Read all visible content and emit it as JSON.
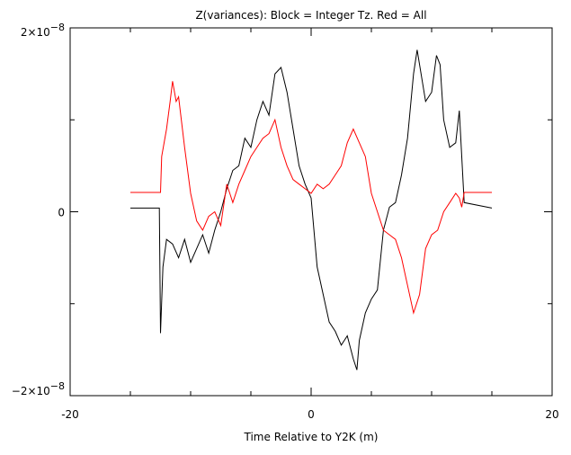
{
  "chart_data": {
    "type": "line",
    "title": "Z(variances): Block = Integer Tz. Red = All",
    "xlabel": "Time Relative to Y2K (m)",
    "ylabel": "",
    "xlim": [
      -20,
      20
    ],
    "ylim": [
      -2e-08,
      2e-08
    ],
    "x_ticks": [
      {
        "v": -20,
        "label": "-20"
      },
      {
        "v": 0,
        "label": "0"
      },
      {
        "v": 20,
        "label": "20"
      }
    ],
    "y_ticks": [
      {
        "v": 2e-08,
        "base": "2×10",
        "exp": "−8"
      },
      {
        "v": 0,
        "base": "0",
        "exp": ""
      },
      {
        "v": -2e-08,
        "base": "−2×10",
        "exp": "−8"
      }
    ],
    "grid": false,
    "y_units_scale": 1e-08,
    "series": [
      {
        "color": "#000000",
        "x": [
          -15,
          -12.6,
          -12.5,
          -12.3,
          -12,
          -11.5,
          -11,
          -10.5,
          -10,
          -9.5,
          -9,
          -8.5,
          -8,
          -7.5,
          -7,
          -6.5,
          -6,
          -5.5,
          -5,
          -4.5,
          -4,
          -3.5,
          -3,
          -2.5,
          -2,
          -1.5,
          -1,
          -0.5,
          0,
          0.5,
          1,
          1.5,
          2,
          2.5,
          3,
          3.5,
          3.8,
          4,
          4.5,
          5,
          5.5,
          6,
          6.5,
          7,
          7.5,
          8,
          8.5,
          8.8,
          9,
          9.5,
          10,
          10.4,
          10.7,
          11,
          11.5,
          12,
          12.3,
          12.5,
          12.7,
          15
        ],
        "y": [
          0.04,
          0.04,
          -1.32,
          -0.6,
          -0.3,
          -0.35,
          -0.5,
          -0.3,
          -0.55,
          -0.4,
          -0.25,
          -0.45,
          -0.2,
          0.0,
          0.25,
          0.45,
          0.5,
          0.8,
          0.7,
          1.0,
          1.2,
          1.05,
          1.5,
          1.57,
          1.3,
          0.9,
          0.5,
          0.3,
          0.15,
          -0.6,
          -0.9,
          -1.2,
          -1.3,
          -1.45,
          -1.35,
          -1.6,
          -1.72,
          -1.4,
          -1.1,
          -0.95,
          -0.85,
          -0.2,
          0.05,
          0.1,
          0.4,
          0.8,
          1.5,
          1.76,
          1.6,
          1.2,
          1.3,
          1.7,
          1.6,
          1.0,
          0.7,
          0.75,
          1.1,
          0.6,
          0.1,
          0.04
        ]
      },
      {
        "color": "#ff0000",
        "x": [
          -15,
          -12.5,
          -12.4,
          -12,
          -11.7,
          -11.5,
          -11.2,
          -11,
          -10.5,
          -10,
          -9.5,
          -9,
          -8.5,
          -8,
          -7.5,
          -7,
          -6.5,
          -6,
          -5.5,
          -5,
          -4.5,
          -4,
          -3.5,
          -3,
          -2.5,
          -2,
          -1.5,
          -1,
          -0.5,
          0,
          0.5,
          1,
          1.5,
          2,
          2.5,
          3,
          3.5,
          4,
          4.5,
          5,
          5.5,
          6,
          6.5,
          7,
          7.5,
          8,
          8.5,
          9,
          9.5,
          10,
          10.5,
          11,
          11.5,
          12,
          12.3,
          12.5,
          12.7,
          15
        ],
        "y": [
          0.21,
          0.21,
          0.6,
          0.9,
          1.2,
          1.42,
          1.2,
          1.25,
          0.7,
          0.2,
          -0.1,
          -0.2,
          -0.05,
          0.0,
          -0.15,
          0.3,
          0.1,
          0.3,
          0.45,
          0.6,
          0.7,
          0.8,
          0.85,
          1.0,
          0.7,
          0.5,
          0.35,
          0.3,
          0.25,
          0.2,
          0.3,
          0.25,
          0.3,
          0.4,
          0.5,
          0.75,
          0.9,
          0.75,
          0.6,
          0.2,
          0.0,
          -0.2,
          -0.25,
          -0.3,
          -0.5,
          -0.8,
          -1.1,
          -0.9,
          -0.4,
          -0.25,
          -0.2,
          0.0,
          0.1,
          0.2,
          0.15,
          0.05,
          0.21,
          0.21
        ]
      }
    ]
  }
}
